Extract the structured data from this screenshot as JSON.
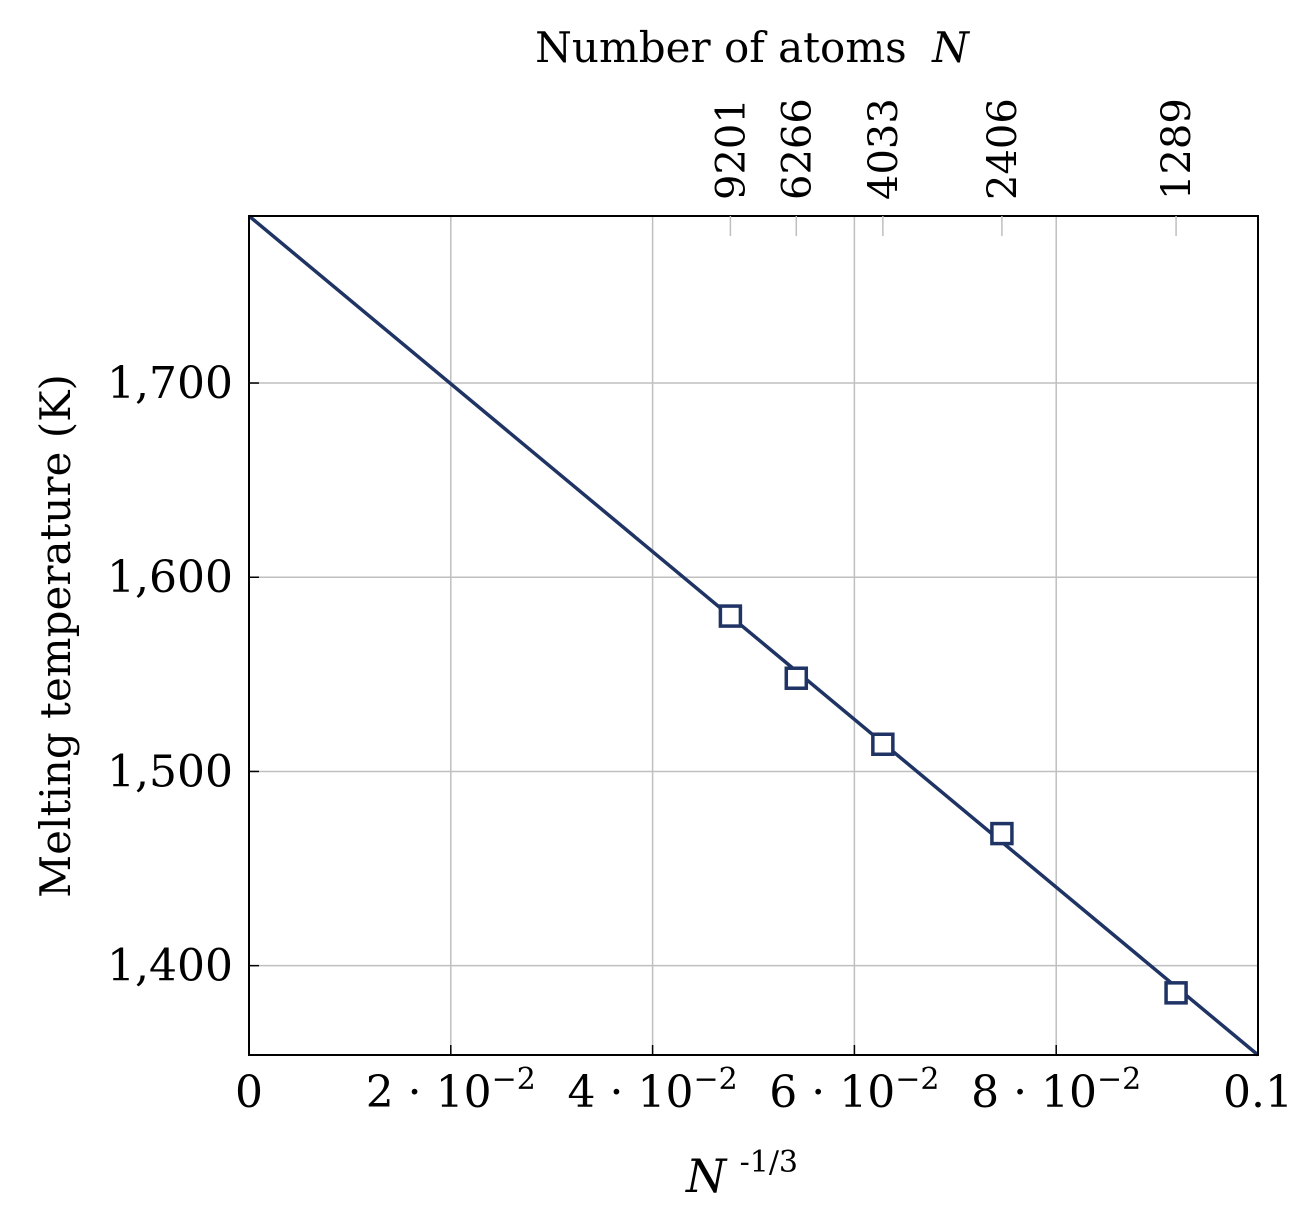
{
  "chart_data": {
    "type": "scatter",
    "title": "",
    "xlabel_base": "N",
    "xlabel_exponent": "-1/3",
    "ylabel": "Melting temperature (K)",
    "top_axis_label_text": "Number of atoms",
    "top_axis_label_var": "N",
    "xlim": [
      0,
      0.1
    ],
    "ylim": [
      1354,
      1786
    ],
    "grid": true,
    "x_ticks": [
      {
        "value": 0,
        "mantissa": "0",
        "exponent": ""
      },
      {
        "value": 0.02,
        "mantissa": "2 · 10",
        "exponent": "−2"
      },
      {
        "value": 0.04,
        "mantissa": "4 · 10",
        "exponent": "−2"
      },
      {
        "value": 0.06,
        "mantissa": "6 · 10",
        "exponent": "−2"
      },
      {
        "value": 0.08,
        "mantissa": "8 · 10",
        "exponent": "−2"
      },
      {
        "value": 0.1,
        "mantissa": "0.1",
        "exponent": ""
      }
    ],
    "y_ticks": [
      {
        "value": 1400,
        "label": "1,400"
      },
      {
        "value": 1500,
        "label": "1,500"
      },
      {
        "value": 1600,
        "label": "1,600"
      },
      {
        "value": 1700,
        "label": "1,700"
      }
    ],
    "top_ticks": [
      {
        "value": 0.04771,
        "label": "9201"
      },
      {
        "value": 0.05424,
        "label": "6266"
      },
      {
        "value": 0.06282,
        "label": "4033"
      },
      {
        "value": 0.07462,
        "label": "2406"
      },
      {
        "value": 0.09188,
        "label": "1289"
      }
    ],
    "series": [
      {
        "kind": "markers",
        "marker": "square",
        "x": [
          0.04771,
          0.05424,
          0.06282,
          0.07462,
          0.09188
        ],
        "y": [
          1580,
          1548,
          1514,
          1468,
          1386
        ]
      },
      {
        "kind": "fit-line",
        "x": [
          0,
          0.1
        ],
        "y": [
          1786,
          1354
        ]
      }
    ],
    "colors": {
      "series": "#1f3464",
      "grid": "#bfbfbf",
      "axis": "#000000"
    }
  }
}
